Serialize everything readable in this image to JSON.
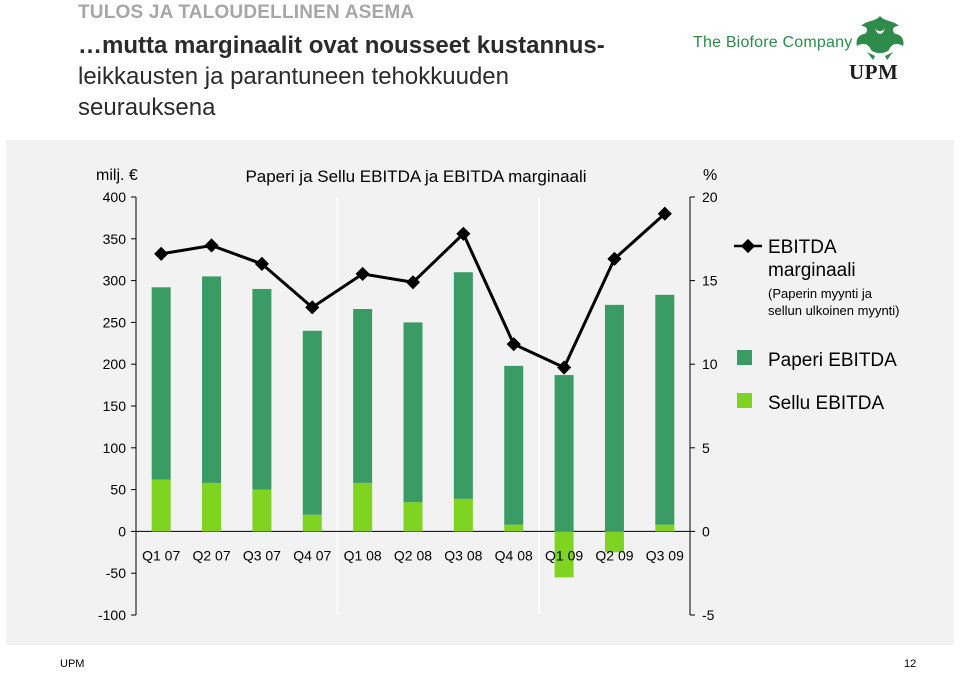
{
  "header": {
    "section": "TULOS JA TALOUDELLINEN ASEMA",
    "headline_line1": "…mutta marginaalit ovat nousseet kustannus-",
    "headline_line2": "leikkausten ja parantuneen tehokkuuden",
    "headline_line3": "seurauksena",
    "biofore": "The Biofore Company",
    "logo_text": "UPM"
  },
  "footer": {
    "left": "UPM",
    "page": "12"
  },
  "colors": {
    "paperi": "#3a9b64",
    "sellu": "#7fd321",
    "line": "#000000",
    "panel": "#f2f2f2"
  },
  "chart_data": {
    "type": "bar",
    "title": "Paperi ja Sellu EBITDA ja EBITDA marginaali",
    "ylabel": "milj. €",
    "y2label": "%",
    "categories": [
      "Q1 07",
      "Q2 07",
      "Q3 07",
      "Q4 07",
      "Q1 08",
      "Q2 08",
      "Q3 08",
      "Q4 08",
      "Q1 09",
      "Q2 09",
      "Q3 09"
    ],
    "ylim": [
      -100,
      400
    ],
    "y_ticks": [
      400,
      350,
      300,
      250,
      200,
      150,
      100,
      50,
      0,
      -50,
      -100
    ],
    "y2lim": [
      -5,
      20
    ],
    "y2_ticks": [
      20,
      15,
      10,
      5,
      0,
      -5
    ],
    "stacked": true,
    "series": [
      {
        "name": "Sellu EBITDA",
        "type": "bar",
        "values": [
          62,
          58,
          50,
          20,
          58,
          35,
          39,
          8,
          -55,
          -25,
          8
        ]
      },
      {
        "name": "Paperi EBITDA",
        "type": "bar",
        "values": [
          230,
          247,
          240,
          220,
          208,
          215,
          271,
          190,
          187,
          271,
          275
        ]
      },
      {
        "name": "EBITDA marginaali",
        "type": "line",
        "axis": "right",
        "values": [
          16.6,
          17.1,
          16.0,
          13.4,
          15.4,
          14.9,
          17.8,
          11.2,
          9.8,
          16.3,
          19.0
        ]
      }
    ],
    "legend": {
      "position": "right",
      "margin_line1": "EBITDA",
      "margin_line2": "marginaali",
      "margin_sub1": "(Paperin myynti ja",
      "margin_sub2": "sellun ulkoinen myynti)",
      "paperi": "Paperi EBITDA",
      "sellu": "Sellu EBITDA"
    }
  }
}
